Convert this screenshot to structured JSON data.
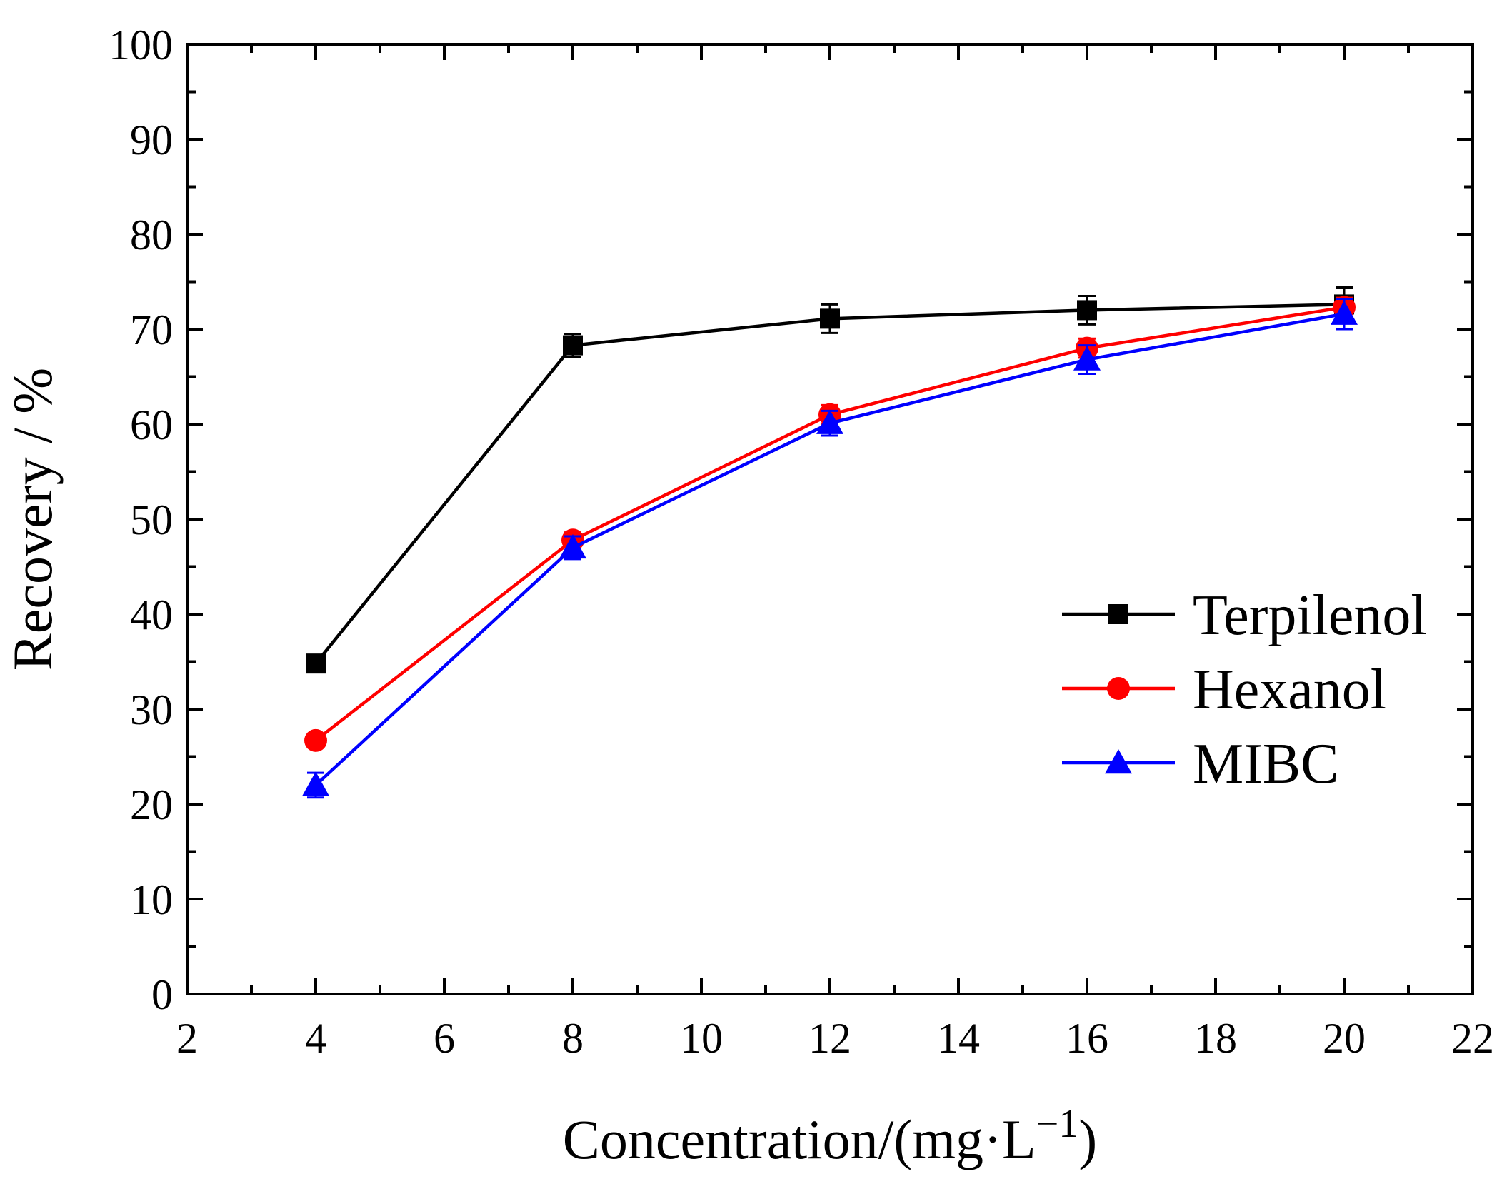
{
  "chart_data": {
    "type": "line",
    "title": "",
    "xlabel": "Concentration/(mg·L",
    "xlabel_sup": "−1",
    "xlabel_close": ")",
    "ylabel": "Recovery / %",
    "xlim": [
      2,
      22
    ],
    "ylim": [
      0,
      100
    ],
    "x_ticks": [
      2,
      4,
      6,
      8,
      10,
      12,
      14,
      16,
      18,
      20,
      22
    ],
    "y_ticks": [
      0,
      10,
      20,
      30,
      40,
      50,
      60,
      70,
      80,
      90,
      100
    ],
    "x_tick_labels": [
      "2",
      "4",
      "6",
      "8",
      "10",
      "12",
      "14",
      "16",
      "18",
      "20",
      "22"
    ],
    "y_tick_labels": [
      "0",
      "10",
      "20",
      "30",
      "40",
      "50",
      "60",
      "70",
      "80",
      "90",
      "100"
    ],
    "legend_position": "center-right",
    "grid": false,
    "x": [
      4,
      8,
      12,
      16,
      20
    ],
    "series": [
      {
        "name": "Terpilenol",
        "color": "#000000",
        "marker": "square",
        "values": [
          34.8,
          68.3,
          71.1,
          72.0,
          72.6
        ],
        "errors": [
          0.5,
          1.2,
          1.5,
          1.5,
          1.8
        ]
      },
      {
        "name": "Hexanol",
        "color": "#ff0000",
        "marker": "circle",
        "values": [
          26.7,
          47.8,
          61.0,
          68.0,
          72.3
        ],
        "errors": [
          0.5,
          0.8,
          1.0,
          1.0,
          1.0
        ]
      },
      {
        "name": "MIBC",
        "color": "#0000ff",
        "marker": "triangle",
        "values": [
          22.0,
          47.0,
          60.1,
          66.8,
          71.6
        ],
        "errors": [
          1.3,
          1.2,
          1.3,
          1.5,
          1.6
        ]
      }
    ]
  }
}
